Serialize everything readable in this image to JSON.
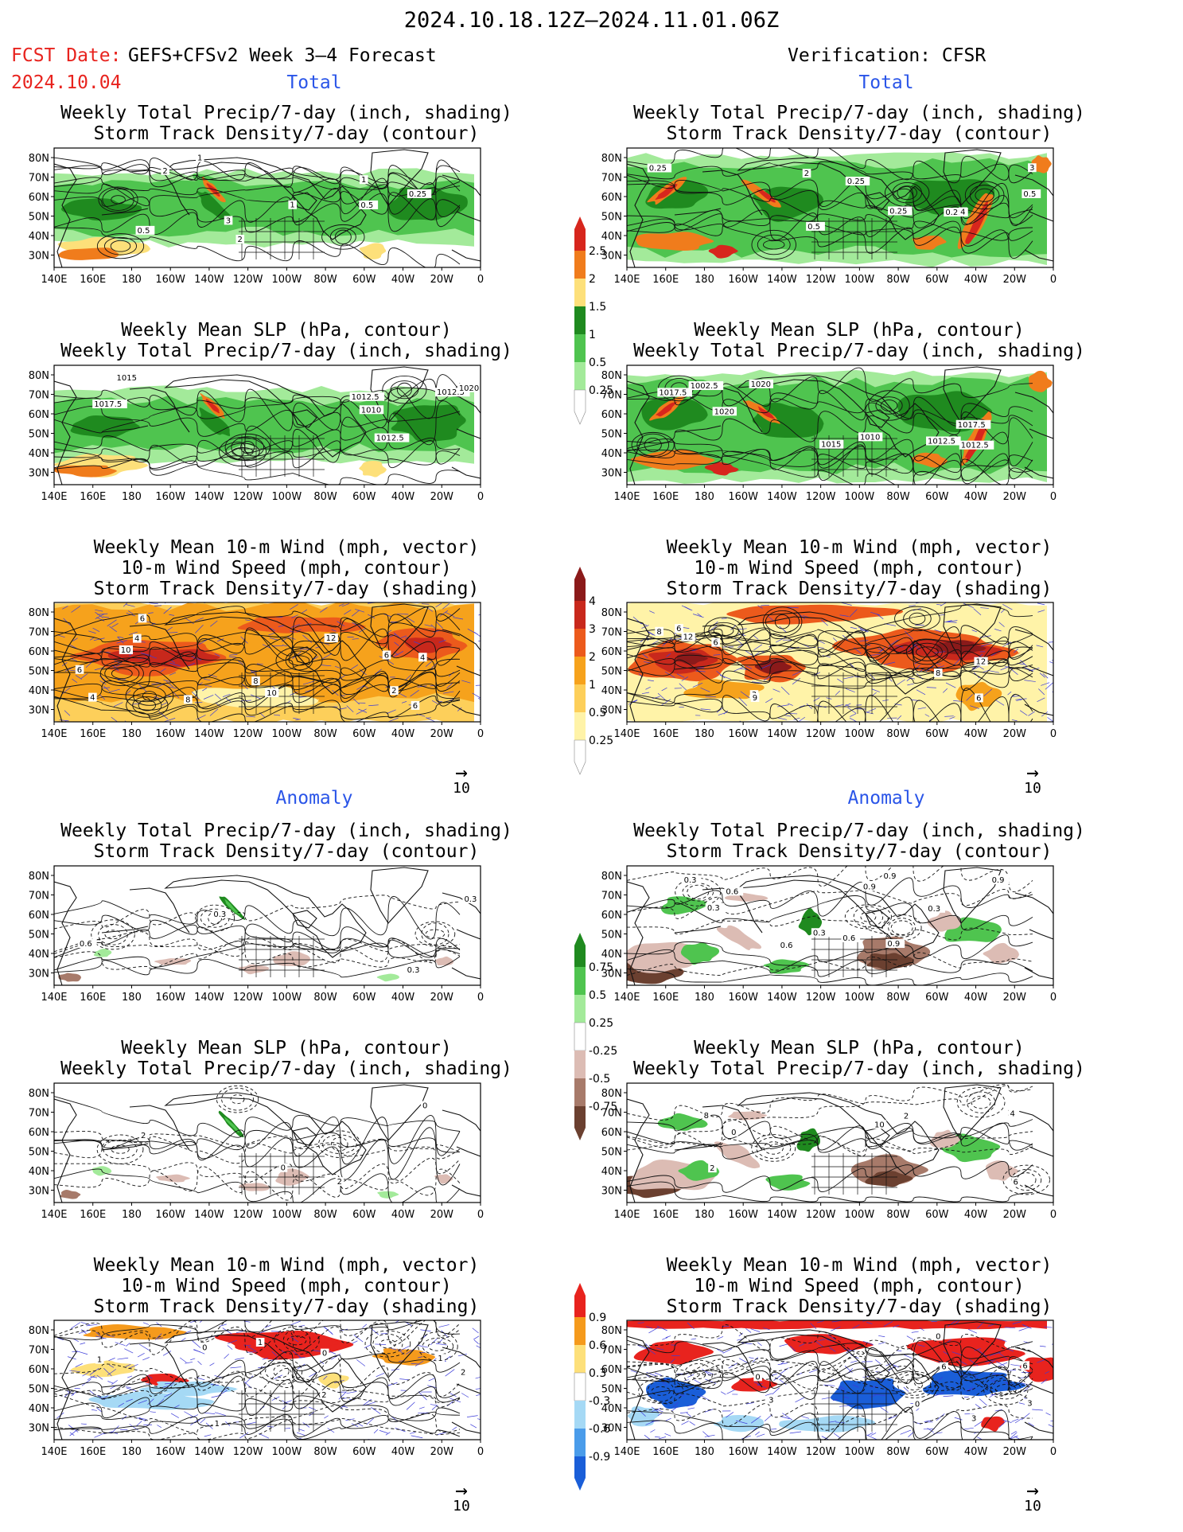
{
  "header": {
    "title": "2024.10.18.12Z–2024.11.01.06Z",
    "fcst_label": "FCST Date:",
    "fcst_date": "2024.10.04",
    "model": "GEFS+CFSv2 Week 3–4 Forecast",
    "verification": "Verification: CFSR"
  },
  "sections": {
    "total_left": "Total",
    "total_right": "Total",
    "anomaly_left": "Anomaly",
    "anomaly_right": "Anomaly"
  },
  "panel_titles": {
    "precip_storm": [
      "Weekly Total Precip/7-day (inch, shading)",
      "Storm Track Density/7-day (contour)"
    ],
    "slp_precip": [
      "Weekly Mean SLP (hPa, contour)",
      "Weekly Total Precip/7-day (inch, shading)"
    ],
    "wind_storm": [
      "Weekly Mean 10-m Wind (mph, vector)",
      "10-m Wind Speed (mph, contour)",
      "Storm Track Density/7-day (shading)"
    ]
  },
  "axes": {
    "lat_labels": [
      "80N",
      "70N",
      "60N",
      "50N",
      "40N",
      "30N"
    ],
    "lon_labels": [
      "140E",
      "160E",
      "180",
      "160W",
      "140W",
      "120W",
      "100W",
      "80W",
      "60W",
      "40W",
      "20W",
      "0"
    ]
  },
  "vector_key": "10",
  "colorbars": {
    "precip_total": {
      "labels": [
        "2.5",
        "2",
        "1.5",
        "1",
        "0.5",
        "0.25"
      ],
      "colors": [
        "#d7261d",
        "#f07c1c",
        "#fde07a",
        "#1f8a1f",
        "#4fc44f",
        "#a3ea9a",
        "#ffffff"
      ]
    },
    "storm_total": {
      "labels": [
        "4",
        "3",
        "2",
        "1",
        "0.5",
        "0.25"
      ],
      "colors": [
        "#8b1a1a",
        "#c8281c",
        "#ec5a1c",
        "#f6a21c",
        "#fdcf5a",
        "#fff3a8",
        "#ffffff"
      ]
    },
    "precip_anom": {
      "labels": [
        "0.75",
        "0.5",
        "0.25",
        "-0.25",
        "-0.5",
        "-0.75"
      ],
      "colors": [
        "#1f8a1f",
        "#4fc44f",
        "#a3ea9a",
        "#ffffff",
        "#dcbcb4",
        "#a77a6a",
        "#6b4030"
      ]
    },
    "storm_anom": {
      "labels": [
        "0.9",
        "0.6",
        "0.3",
        "-0.3",
        "-0.6",
        "-0.9"
      ],
      "colors": [
        "#e8231e",
        "#f59a1c",
        "#fde07a",
        "#ffffff",
        "#a5d9f5",
        "#4a9cea",
        "#1a5ed8"
      ]
    }
  },
  "panels": {
    "l1": {
      "contour_labels": [
        "0.5",
        "1",
        "2",
        "3",
        "1",
        "2",
        "1",
        "0.5",
        "0.25"
      ]
    },
    "r1": {
      "contour_labels": [
        "0.25",
        "0.5",
        "2",
        "0.25",
        "0.5",
        "0.25",
        "0.25",
        "3",
        "4"
      ]
    },
    "l2": {
      "contour_labels": [
        "1012.5",
        "1012.5",
        "1010",
        "1012.5",
        "1015",
        "1017.5",
        "1020"
      ]
    },
    "r2": {
      "contour_labels": [
        "1012.5",
        "1002.5",
        "1012.5",
        "1010",
        "1017.5",
        "1015",
        "1020",
        "1017.5",
        "1020"
      ]
    },
    "l3": {
      "contour_labels": [
        "2",
        "6",
        "4",
        "8",
        "10",
        "4",
        "12",
        "8",
        "6",
        "4",
        "6",
        "10",
        "6"
      ]
    },
    "r3": {
      "contour_labels": [
        "6",
        "3",
        "8",
        "6",
        "6",
        "9",
        "12",
        "12",
        "8"
      ]
    },
    "l4": {
      "contour_labels": [
        "0.3",
        "0.6",
        "0.3",
        "0.3"
      ]
    },
    "r4": {
      "contour_labels": [
        "0.9",
        "0.3",
        "0.6",
        "0.9",
        "0.9",
        "0.3",
        "0.6",
        "0.3",
        "0.6",
        "0.9",
        "0.3"
      ]
    },
    "l5": {
      "contour_labels": [
        "0",
        "2",
        "2",
        "0"
      ]
    },
    "r5": {
      "contour_labels": [
        "12",
        "10",
        "2",
        "8",
        "6",
        "4",
        "2",
        "0"
      ]
    },
    "l6": {
      "contour_labels": [
        "1",
        "0",
        "2",
        "1",
        "0",
        "1",
        "2",
        "1"
      ]
    },
    "r6": {
      "contour_labels": [
        "6",
        "0",
        "3",
        "0",
        "3",
        "6",
        "3",
        "0"
      ]
    }
  }
}
